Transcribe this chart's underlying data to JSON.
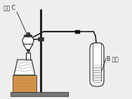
{
  "bg_color": "#eeeeee",
  "line_color": "#222222",
  "label_solid_c": "固体 C",
  "label_b_solution": "B 溶液",
  "wood_top_color": "#d4944a",
  "wood_bottom_color": "#b8712a",
  "stand_gray": "#777777",
  "dark_gray": "#333333",
  "mid_gray": "#888888",
  "light_gray": "#cccccc",
  "white": "#ffffff",
  "black": "#111111"
}
